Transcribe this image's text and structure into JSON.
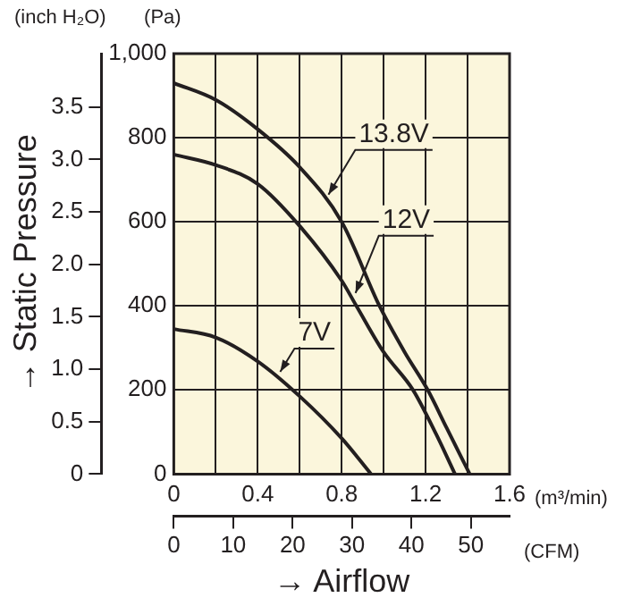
{
  "chart_data": {
    "type": "line",
    "y2label": "→ Static Pressure",
    "xlabel": "→ Airflow",
    "annotations": [
      "(inch H₂O)",
      "(Pa)",
      "(m³/min)",
      "(CFM)"
    ],
    "xlim": [
      0,
      1.6
    ],
    "xticks": [
      0,
      {
        "value": 0.2,
        "label": null
      },
      0.4,
      {
        "value": 0.6,
        "label": null
      },
      0.8,
      {
        "value": 1.0,
        "label": null
      },
      1.2,
      {
        "value": 1.4,
        "label": null
      },
      1.6
    ],
    "ylim": [
      0,
      1000
    ],
    "yticks": [
      0,
      200,
      400,
      600,
      800,
      {
        "value": 1000,
        "label": "1,000"
      }
    ],
    "y2lim": [
      0,
      4.01
    ],
    "y2ticks": [
      0,
      0.5,
      {
        "value": 1,
        "label": "1.0"
      },
      1.5,
      {
        "value": 2,
        "label": "2.0"
      },
      2.5,
      {
        "value": 3,
        "label": "3.0"
      },
      3.5
    ],
    "x2lim": [
      0,
      56.5
    ],
    "x2ticks": [
      0,
      10,
      20,
      30,
      40,
      50
    ],
    "grid": true,
    "marker": "none",
    "series": [
      {
        "name": "13.8V",
        "color": "#231f20",
        "x": [
          0,
          0.2,
          0.4,
          0.6,
          0.8,
          0.98,
          1.1,
          1.21,
          1.3,
          1.41
        ],
        "values": [
          930,
          890,
          820,
          730,
          600,
          400,
          290,
          200,
          110,
          0
        ]
      },
      {
        "name": "12V",
        "color": "#231f20",
        "x": [
          0,
          0.2,
          0.4,
          0.6,
          0.8,
          0.87,
          1.0,
          1.14,
          1.25,
          1.34
        ],
        "values": [
          760,
          735,
          690,
          590,
          460,
          400,
          290,
          200,
          95,
          0
        ]
      },
      {
        "name": "7V",
        "color": "#231f20",
        "x": [
          0,
          0.2,
          0.4,
          0.6,
          0.8,
          0.94
        ],
        "values": [
          345,
          325,
          268,
          185,
          85,
          0
        ]
      }
    ]
  }
}
